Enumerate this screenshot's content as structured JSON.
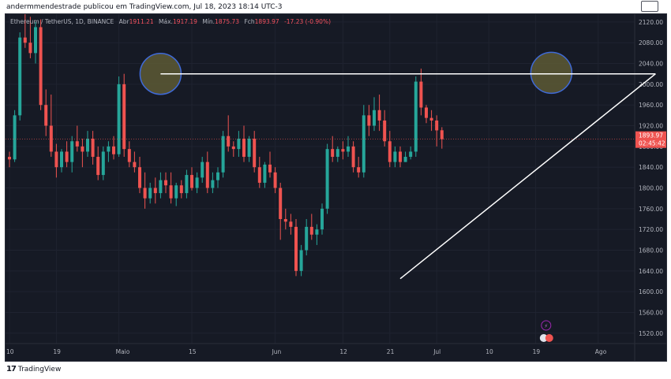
{
  "caption": "andermmendestrade publicou em TradingView.com, Jul 18, 2023 18:14 UTC-3",
  "footer_brand": "TradingView",
  "footer_logo": "17",
  "symbol_header": {
    "pair": "Ethereum / TetherUS, 1D, BINANCE",
    "open_label": "Abr",
    "open": "1911.21",
    "high_label": "Máx.",
    "high": "1917.19",
    "low_label": "Mín.",
    "low": "1875.73",
    "close_label": "Fch",
    "close": "1893.97",
    "change": "-17.23 (-0.90%)"
  },
  "price_tag": {
    "price": "1893.97",
    "countdown": "02:45:42"
  },
  "colors": {
    "up": "#26a69a",
    "down": "#ef5350",
    "background": "#161a25",
    "text": "#b2b5be",
    "drawing": "#ffffff",
    "highlight": "#5d5a35"
  },
  "chart_data": {
    "type": "candlestick",
    "y_axis": {
      "ticks": [
        1520,
        1560,
        1600,
        1640,
        1680,
        1720,
        1760,
        1800,
        1840,
        1880,
        1920,
        1960,
        2000,
        2040,
        2080,
        2120
      ],
      "range": [
        1500,
        2135
      ]
    },
    "x_axis": {
      "ticks": [
        "10",
        "19",
        "Maio",
        "15",
        "Jun",
        "12",
        "21",
        "Jul",
        "10",
        "19",
        "Ago"
      ],
      "tick_index": [
        0,
        9,
        21,
        35,
        51,
        64,
        73,
        82,
        92,
        101,
        113
      ]
    },
    "last_price": 1893.97,
    "candles": [
      [
        1860,
        1870,
        1840,
        1855
      ],
      [
        1855,
        1950,
        1850,
        1940
      ],
      [
        1940,
        2100,
        1930,
        2090
      ],
      [
        2090,
        2135,
        2070,
        2080
      ],
      [
        2080,
        2130,
        2050,
        2060
      ],
      [
        2060,
        2120,
        2040,
        2110
      ],
      [
        2110,
        2125,
        1950,
        1960
      ],
      [
        1960,
        1990,
        1900,
        1920
      ],
      [
        1920,
        1980,
        1860,
        1870
      ],
      [
        1870,
        1885,
        1820,
        1840
      ],
      [
        1840,
        1875,
        1830,
        1870
      ],
      [
        1870,
        1890,
        1840,
        1850
      ],
      [
        1850,
        1900,
        1830,
        1890
      ],
      [
        1890,
        1920,
        1870,
        1880
      ],
      [
        1880,
        1895,
        1840,
        1870
      ],
      [
        1870,
        1910,
        1860,
        1895
      ],
      [
        1895,
        1910,
        1845,
        1860
      ],
      [
        1860,
        1880,
        1815,
        1825
      ],
      [
        1825,
        1880,
        1815,
        1870
      ],
      [
        1870,
        1890,
        1850,
        1880
      ],
      [
        1880,
        1900,
        1855,
        1865
      ],
      [
        1865,
        2015,
        1860,
        2000
      ],
      [
        2000,
        2020,
        1860,
        1875
      ],
      [
        1875,
        1890,
        1840,
        1850
      ],
      [
        1850,
        1870,
        1830,
        1840
      ],
      [
        1840,
        1860,
        1790,
        1800
      ],
      [
        1800,
        1830,
        1760,
        1780
      ],
      [
        1780,
        1810,
        1770,
        1800
      ],
      [
        1800,
        1820,
        1770,
        1790
      ],
      [
        1790,
        1830,
        1780,
        1815
      ],
      [
        1815,
        1830,
        1790,
        1805
      ],
      [
        1805,
        1830,
        1770,
        1780
      ],
      [
        1780,
        1810,
        1765,
        1805
      ],
      [
        1805,
        1815,
        1780,
        1790
      ],
      [
        1790,
        1835,
        1780,
        1825
      ],
      [
        1825,
        1840,
        1795,
        1800
      ],
      [
        1800,
        1830,
        1790,
        1820
      ],
      [
        1820,
        1860,
        1810,
        1850
      ],
      [
        1850,
        1870,
        1790,
        1800
      ],
      [
        1800,
        1830,
        1790,
        1815
      ],
      [
        1815,
        1840,
        1800,
        1830
      ],
      [
        1830,
        1910,
        1820,
        1900
      ],
      [
        1900,
        1940,
        1870,
        1880
      ],
      [
        1880,
        1890,
        1860,
        1875
      ],
      [
        1875,
        1910,
        1860,
        1895
      ],
      [
        1895,
        1920,
        1850,
        1860
      ],
      [
        1860,
        1900,
        1850,
        1895
      ],
      [
        1895,
        1910,
        1830,
        1840
      ],
      [
        1840,
        1860,
        1800,
        1810
      ],
      [
        1810,
        1850,
        1800,
        1845
      ],
      [
        1845,
        1870,
        1820,
        1830
      ],
      [
        1830,
        1840,
        1790,
        1800
      ],
      [
        1800,
        1810,
        1700,
        1740
      ],
      [
        1740,
        1760,
        1720,
        1735
      ],
      [
        1735,
        1750,
        1710,
        1725
      ],
      [
        1725,
        1740,
        1630,
        1640
      ],
      [
        1640,
        1690,
        1630,
        1680
      ],
      [
        1680,
        1740,
        1670,
        1725
      ],
      [
        1725,
        1750,
        1700,
        1710
      ],
      [
        1710,
        1730,
        1690,
        1720
      ],
      [
        1720,
        1770,
        1710,
        1760
      ],
      [
        1760,
        1885,
        1750,
        1875
      ],
      [
        1875,
        1900,
        1850,
        1860
      ],
      [
        1860,
        1880,
        1850,
        1875
      ],
      [
        1875,
        1890,
        1855,
        1870
      ],
      [
        1870,
        1900,
        1860,
        1880
      ],
      [
        1880,
        1890,
        1830,
        1840
      ],
      [
        1840,
        1860,
        1820,
        1830
      ],
      [
        1830,
        1960,
        1820,
        1940
      ],
      [
        1940,
        1960,
        1900,
        1920
      ],
      [
        1920,
        1975,
        1910,
        1950
      ],
      [
        1950,
        1980,
        1910,
        1930
      ],
      [
        1930,
        1950,
        1880,
        1890
      ],
      [
        1890,
        1910,
        1840,
        1850
      ],
      [
        1850,
        1880,
        1840,
        1870
      ],
      [
        1870,
        1880,
        1840,
        1850
      ],
      [
        1850,
        1870,
        1850,
        1860
      ],
      [
        1860,
        1880,
        1855,
        1870
      ],
      [
        1870,
        2015,
        1860,
        2005
      ],
      [
        2005,
        2030,
        1940,
        1955
      ],
      [
        1955,
        1960,
        1925,
        1935
      ],
      [
        1935,
        1950,
        1910,
        1930
      ],
      [
        1930,
        1940,
        1880,
        1911
      ],
      [
        1911.21,
        1917.19,
        1875.73,
        1893.97
      ]
    ],
    "candle_start_index": 0,
    "annotations": [
      {
        "type": "horizontal_segment",
        "from": [
          29,
          2020
        ],
        "to": [
          124,
          2020
        ]
      },
      {
        "type": "trend_line",
        "from": [
          75,
          1625
        ],
        "to": [
          124,
          2020
        ]
      },
      {
        "type": "circle",
        "center": [
          29,
          2020
        ]
      },
      {
        "type": "circle",
        "center": [
          104,
          2022
        ]
      }
    ]
  }
}
